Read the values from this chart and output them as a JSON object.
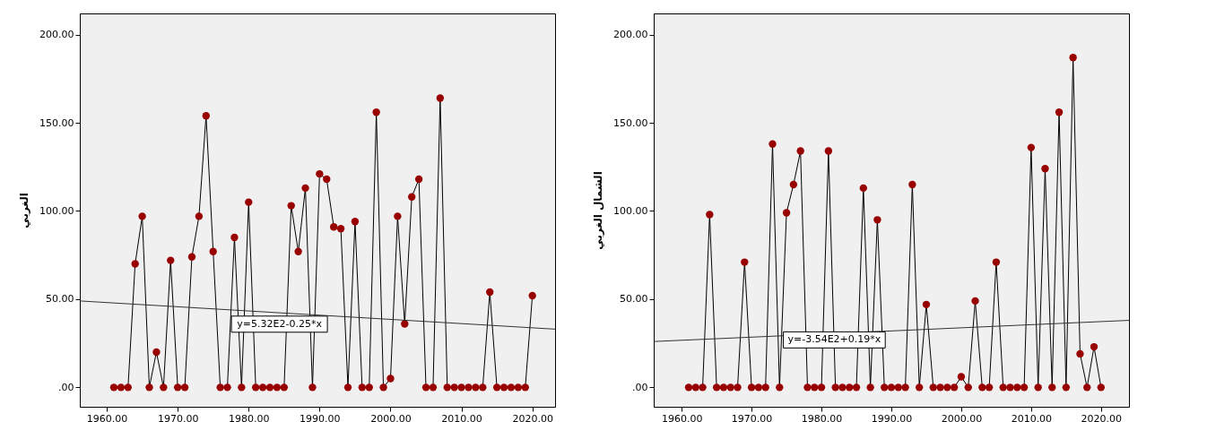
{
  "chart_data": [
    {
      "type": "line",
      "ylabel": "الغربي",
      "marker": "circle",
      "grid": false,
      "xlim": [
        1956.2,
        2023.2
      ],
      "ylim": [
        -11,
        212
      ],
      "xticks": [
        {
          "value": 1960,
          "label": "1960.00"
        },
        {
          "value": 1970,
          "label": "1970.00"
        },
        {
          "value": 1980,
          "label": "1980.00"
        },
        {
          "value": 1990,
          "label": "1990.00"
        },
        {
          "value": 2000,
          "label": "2000.00"
        },
        {
          "value": 2010,
          "label": "2010.00"
        },
        {
          "value": 2020,
          "label": "2020.00"
        }
      ],
      "yticks": [
        {
          "value": 0,
          "label": ".00"
        },
        {
          "value": 50,
          "label": "50.00"
        },
        {
          "value": 100,
          "label": "100.00"
        },
        {
          "value": 150,
          "label": "150.00"
        },
        {
          "value": 200,
          "label": "200.00"
        }
      ],
      "x": [
        1961,
        1962,
        1963,
        1964,
        1965,
        1966,
        1967,
        1968,
        1969,
        1970,
        1971,
        1972,
        1973,
        1974,
        1975,
        1976,
        1977,
        1978,
        1979,
        1980,
        1981,
        1982,
        1983,
        1984,
        1985,
        1986,
        1987,
        1988,
        1989,
        1990,
        1991,
        1992,
        1993,
        1994,
        1995,
        1996,
        1997,
        1998,
        1999,
        2000,
        2001,
        2002,
        2003,
        2004,
        2005,
        2006,
        2007,
        2008,
        2009,
        2010,
        2011,
        2012,
        2013,
        2014,
        2015,
        2016,
        2017,
        2018,
        2019,
        2020
      ],
      "series": [
        {
          "color": "#990000",
          "values": [
            0,
            0,
            0,
            70,
            97,
            0,
            20,
            0,
            72,
            0,
            0,
            74,
            97,
            154,
            77,
            0,
            0,
            85,
            0,
            105,
            0,
            0,
            0,
            0,
            0,
            103,
            77,
            113,
            0,
            121,
            118,
            91,
            90,
            0,
            94,
            0,
            0,
            156,
            0,
            5,
            97,
            36,
            108,
            118,
            0,
            0,
            164,
            0,
            0,
            0,
            0,
            0,
            0,
            54,
            0,
            0,
            0,
            0,
            0,
            52
          ]
        },
        {
          "type": "line",
          "marker": "none",
          "color": "#333333",
          "x": [
            1956.2,
            2023.2
          ],
          "values": [
            49,
            33
          ]
        }
      ],
      "annotations": [
        "y=5.32E2-0.25*x"
      ]
    },
    {
      "type": "line",
      "ylabel": "الشمال الغربي",
      "marker": "circle",
      "grid": false,
      "xlim": [
        1956,
        2024
      ],
      "ylim": [
        -11,
        212
      ],
      "xticks": [
        {
          "value": 1960,
          "label": "1960.00"
        },
        {
          "value": 1970,
          "label": "1970.00"
        },
        {
          "value": 1980,
          "label": "1980.00"
        },
        {
          "value": 1990,
          "label": "1990.00"
        },
        {
          "value": 2000,
          "label": "2000.00"
        },
        {
          "value": 2010,
          "label": "2010.00"
        },
        {
          "value": 2020,
          "label": "2020.00"
        }
      ],
      "yticks": [
        {
          "value": 0,
          "label": ".00"
        },
        {
          "value": 50,
          "label": "50.00"
        },
        {
          "value": 100,
          "label": "100.00"
        },
        {
          "value": 150,
          "label": "150.00"
        },
        {
          "value": 200,
          "label": "200.00"
        }
      ],
      "x": [
        1961,
        1962,
        1963,
        1964,
        1965,
        1966,
        1967,
        1968,
        1969,
        1970,
        1971,
        1972,
        1973,
        1974,
        1975,
        1976,
        1977,
        1978,
        1979,
        1980,
        1981,
        1982,
        1983,
        1984,
        1985,
        1986,
        1987,
        1988,
        1989,
        1990,
        1991,
        1992,
        1993,
        1994,
        1995,
        1996,
        1997,
        1998,
        1999,
        2000,
        2001,
        2002,
        2003,
        2004,
        2005,
        2006,
        2007,
        2008,
        2009,
        2010,
        2011,
        2012,
        2013,
        2014,
        2015,
        2016,
        2017,
        2018,
        2019,
        2020
      ],
      "series": [
        {
          "color": "#990000",
          "values": [
            0,
            0,
            0,
            98,
            0,
            0,
            0,
            0,
            71,
            0,
            0,
            0,
            138,
            0,
            99,
            115,
            134,
            0,
            0,
            0,
            134,
            0,
            0,
            0,
            0,
            113,
            0,
            95,
            0,
            0,
            0,
            0,
            115,
            0,
            47,
            0,
            0,
            0,
            0,
            6,
            0,
            49,
            0,
            0,
            71,
            0,
            0,
            0,
            0,
            136,
            0,
            124,
            0,
            156,
            0,
            187,
            19,
            0,
            23,
            0
          ]
        },
        {
          "type": "line",
          "marker": "none",
          "color": "#333333",
          "x": [
            1956,
            2024
          ],
          "values": [
            26,
            38
          ]
        }
      ],
      "annotations": [
        "y=-3.54E2+0.19*x"
      ]
    }
  ]
}
